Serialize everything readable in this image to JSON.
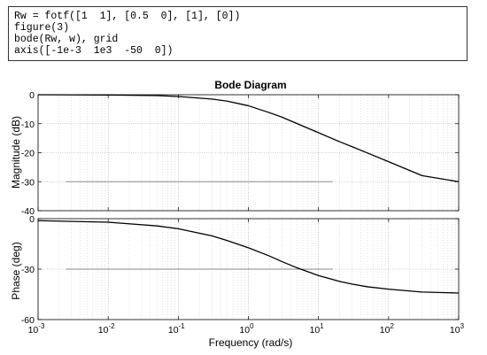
{
  "code": {
    "lines": [
      "Rw = fotf([1  1], [0.5  0], [1], [0])",
      "figure(3)",
      "bode(Rw, w), grid",
      "axis([-1e-3  1e3  -50  0])"
    ]
  },
  "chart_data": {
    "type": "line",
    "title": "Bode Diagram",
    "xlabel": "Frequency  (rad/s)",
    "xscale": "log",
    "xlim": [
      0.001,
      1000
    ],
    "x_ticks": [
      {
        "value": 0.001,
        "base": "10",
        "exp": "-3"
      },
      {
        "value": 0.01,
        "base": "10",
        "exp": "-2"
      },
      {
        "value": 0.1,
        "base": "10",
        "exp": "-1"
      },
      {
        "value": 1,
        "base": "10",
        "exp": "0"
      },
      {
        "value": 10,
        "base": "10",
        "exp": "1"
      },
      {
        "value": 100,
        "base": "10",
        "exp": "2"
      },
      {
        "value": 1000,
        "base": "10",
        "exp": "3"
      }
    ],
    "grid": true,
    "panels": [
      {
        "name": "magnitude",
        "ylabel": "Magnitude (dB)",
        "ylim": [
          -40,
          0
        ],
        "y_ticks": [
          "0",
          "-10",
          "-20",
          "-30",
          "-40"
        ],
        "y_tick_values": [
          0,
          -10,
          -20,
          -30,
          -40
        ],
        "series": [
          {
            "x": [
              0.001,
              0.01,
              0.05,
              0.1,
              0.3,
              0.5,
              1,
              2,
              3,
              5,
              10,
              20,
              30,
              50,
              100,
              300,
              1000
            ],
            "y": [
              0,
              -0.1,
              -0.3,
              -0.6,
              -1.5,
              -2.2,
              -3.8,
              -6.2,
              -7.7,
              -10,
              -13.1,
              -16.2,
              -17.9,
              -20.1,
              -23.1,
              -27.9,
              -30
            ]
          }
        ],
        "reference_line": {
          "x": [
            0.0025,
            16
          ],
          "y": -30
        }
      },
      {
        "name": "phase",
        "ylabel": "Phase (deg)",
        "ylim": [
          -60,
          0
        ],
        "y_ticks": [
          "0",
          "-30",
          "-60"
        ],
        "y_tick_values": [
          0,
          -30,
          -60
        ],
        "series": [
          {
            "x": [
              0.001,
              0.01,
              0.05,
              0.1,
              0.3,
              0.5,
              1,
              2,
              3,
              5,
              10,
              20,
              30,
              50,
              100,
              300,
              1000
            ],
            "y": [
              -1.2,
              -2.1,
              -4.3,
              -6,
              -10.2,
              -13,
              -17.3,
              -22.2,
              -25.5,
              -29.3,
              -33.8,
              -37.3,
              -38.9,
              -40.5,
              -41.9,
              -43.6,
              -44.2
            ]
          }
        ],
        "reference_line": {
          "x": [
            0.0025,
            16
          ],
          "y": -30
        }
      }
    ]
  }
}
